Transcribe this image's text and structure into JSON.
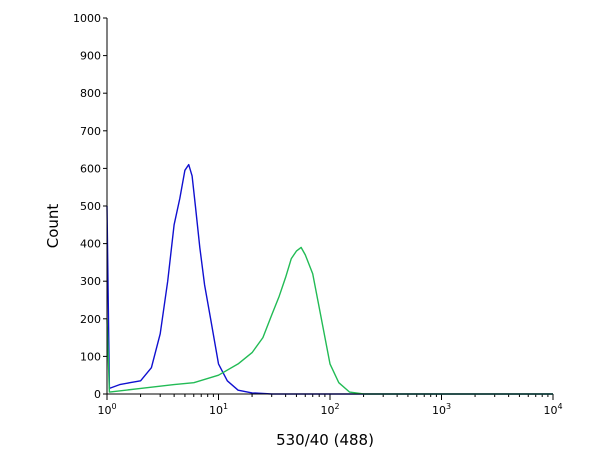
{
  "chart_data": {
    "type": "line",
    "title": "",
    "xlabel": "530/40 (488)",
    "ylabel": "Count",
    "xscale": "log",
    "xlim": [
      1,
      10000
    ],
    "ylim": [
      0,
      1000
    ],
    "yticks": [
      0,
      100,
      200,
      300,
      400,
      500,
      600,
      700,
      800,
      900,
      1000
    ],
    "xticks": [
      {
        "value": 1,
        "base": "10",
        "exp": "0"
      },
      {
        "value": 10,
        "base": "10",
        "exp": "1"
      },
      {
        "value": 100,
        "base": "10",
        "exp": "2"
      },
      {
        "value": 1000,
        "base": "10",
        "exp": "3"
      },
      {
        "value": 10000,
        "base": "10",
        "exp": "4"
      }
    ],
    "grid": false,
    "legend": "none",
    "series": [
      {
        "color": "#1010d0",
        "x": [
          1,
          1.05,
          1.3,
          1.6,
          2.0,
          2.5,
          3.0,
          3.5,
          4.0,
          4.5,
          5.0,
          5.4,
          5.8,
          6.2,
          6.8,
          7.5,
          8.5,
          10,
          12,
          15,
          20,
          30,
          100,
          10000
        ],
        "y": [
          500,
          15,
          25,
          30,
          35,
          70,
          160,
          300,
          450,
          520,
          595,
          610,
          580,
          500,
          390,
          290,
          200,
          80,
          35,
          10,
          3,
          0,
          0,
          0
        ]
      },
      {
        "color": "#22bb55",
        "x": [
          1,
          1.05,
          2,
          4,
          6,
          10,
          15,
          20,
          25,
          30,
          35,
          40,
          45,
          50,
          55,
          60,
          70,
          80,
          100,
          120,
          150,
          200,
          1000,
          10000
        ],
        "y": [
          200,
          5,
          15,
          25,
          30,
          50,
          80,
          110,
          150,
          210,
          260,
          310,
          360,
          380,
          390,
          370,
          320,
          230,
          80,
          30,
          5,
          0,
          0,
          0
        ]
      }
    ]
  }
}
